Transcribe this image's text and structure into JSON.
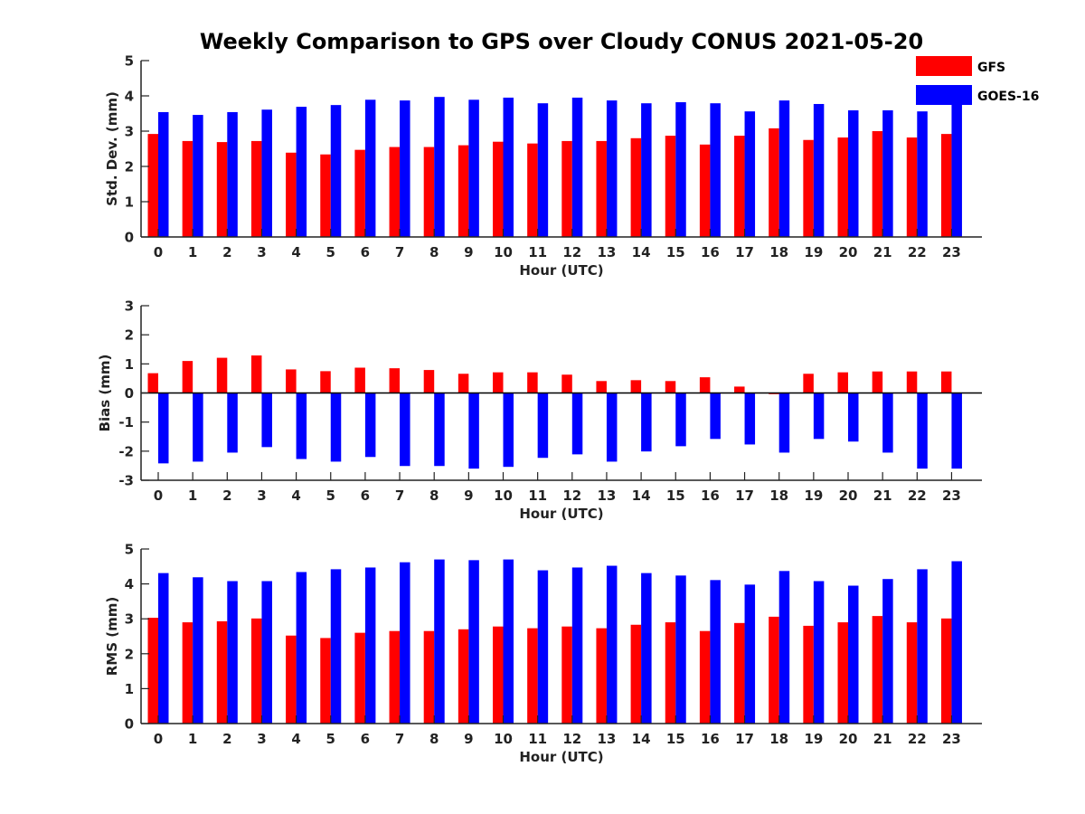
{
  "title": "Weekly Comparison to GPS over Cloudy CONUS 2021-05-20",
  "legend": {
    "placement": "top-right",
    "entries": [
      {
        "name": "GFS",
        "color": "#ff0000"
      },
      {
        "name": "GOES-16",
        "color": "#0000ff"
      }
    ]
  },
  "chart_data": [
    {
      "type": "bar",
      "xlabel": "Hour (UTC)",
      "ylabel": "Std. Dev. (mm)",
      "ylim": [
        0,
        5
      ],
      "yticks": [
        "0",
        "1",
        "2",
        "3",
        "4",
        "5"
      ],
      "categories": [
        "0",
        "1",
        "2",
        "3",
        "4",
        "5",
        "6",
        "7",
        "8",
        "9",
        "10",
        "11",
        "12",
        "13",
        "14",
        "15",
        "16",
        "17",
        "18",
        "19",
        "20",
        "21",
        "22",
        "23"
      ],
      "series": [
        {
          "name": "GFS",
          "color": "#ff0000",
          "values": [
            2.92,
            2.72,
            2.69,
            2.72,
            2.39,
            2.34,
            2.47,
            2.55,
            2.55,
            2.6,
            2.7,
            2.65,
            2.72,
            2.72,
            2.8,
            2.87,
            2.62,
            2.87,
            3.08,
            2.75,
            2.82,
            3.0,
            2.82,
            2.92
          ]
        },
        {
          "name": "GOES-16",
          "color": "#0000ff",
          "values": [
            3.54,
            3.46,
            3.54,
            3.61,
            3.69,
            3.74,
            3.89,
            3.87,
            3.97,
            3.89,
            3.95,
            3.79,
            3.95,
            3.87,
            3.79,
            3.82,
            3.79,
            3.56,
            3.87,
            3.77,
            3.59,
            3.59,
            3.56,
            3.79
          ]
        }
      ]
    },
    {
      "type": "bar",
      "xlabel": "Hour (UTC)",
      "ylabel": "Bias (mm)",
      "ylim": [
        -3,
        3
      ],
      "yticks": [
        "-3",
        "-2",
        "-1",
        "0",
        "1",
        "2",
        "3"
      ],
      "categories": [
        "0",
        "1",
        "2",
        "3",
        "4",
        "5",
        "6",
        "7",
        "8",
        "9",
        "10",
        "11",
        "12",
        "13",
        "14",
        "15",
        "16",
        "17",
        "18",
        "19",
        "20",
        "21",
        "22",
        "23"
      ],
      "series": [
        {
          "name": "GFS",
          "color": "#ff0000",
          "values": [
            0.68,
            1.1,
            1.21,
            1.29,
            0.81,
            0.75,
            0.87,
            0.85,
            0.79,
            0.66,
            0.71,
            0.71,
            0.63,
            0.41,
            0.44,
            0.41,
            0.54,
            0.22,
            -0.04,
            0.66,
            0.71,
            0.74,
            0.74,
            0.74
          ]
        },
        {
          "name": "GOES-16",
          "color": "#0000ff",
          "values": [
            -2.42,
            -2.36,
            -2.05,
            -1.86,
            -2.27,
            -2.36,
            -2.2,
            -2.51,
            -2.51,
            -2.6,
            -2.54,
            -2.23,
            -2.11,
            -2.36,
            -2.01,
            -1.83,
            -1.58,
            -1.77,
            -2.05,
            -1.58,
            -1.67,
            -2.05,
            -2.6,
            -2.6
          ]
        }
      ]
    },
    {
      "type": "bar",
      "xlabel": "Hour (UTC)",
      "ylabel": "RMS (mm)",
      "ylim": [
        0,
        5
      ],
      "yticks": [
        "0",
        "1",
        "2",
        "3",
        "4",
        "5"
      ],
      "categories": [
        "0",
        "1",
        "2",
        "3",
        "4",
        "5",
        "6",
        "7",
        "8",
        "9",
        "10",
        "11",
        "12",
        "13",
        "14",
        "15",
        "16",
        "17",
        "18",
        "19",
        "20",
        "21",
        "22",
        "23"
      ],
      "series": [
        {
          "name": "GFS",
          "color": "#ff0000",
          "values": [
            3.03,
            2.9,
            2.93,
            3.01,
            2.52,
            2.45,
            2.6,
            2.65,
            2.65,
            2.7,
            2.78,
            2.73,
            2.78,
            2.73,
            2.83,
            2.9,
            2.65,
            2.88,
            3.06,
            2.8,
            2.9,
            3.08,
            2.9,
            3.01
          ]
        },
        {
          "name": "GOES-16",
          "color": "#0000ff",
          "values": [
            4.31,
            4.19,
            4.08,
            4.08,
            4.34,
            4.42,
            4.47,
            4.62,
            4.7,
            4.68,
            4.7,
            4.39,
            4.47,
            4.52,
            4.31,
            4.24,
            4.11,
            3.98,
            4.37,
            4.08,
            3.95,
            4.14,
            4.42,
            4.65
          ]
        }
      ]
    }
  ]
}
